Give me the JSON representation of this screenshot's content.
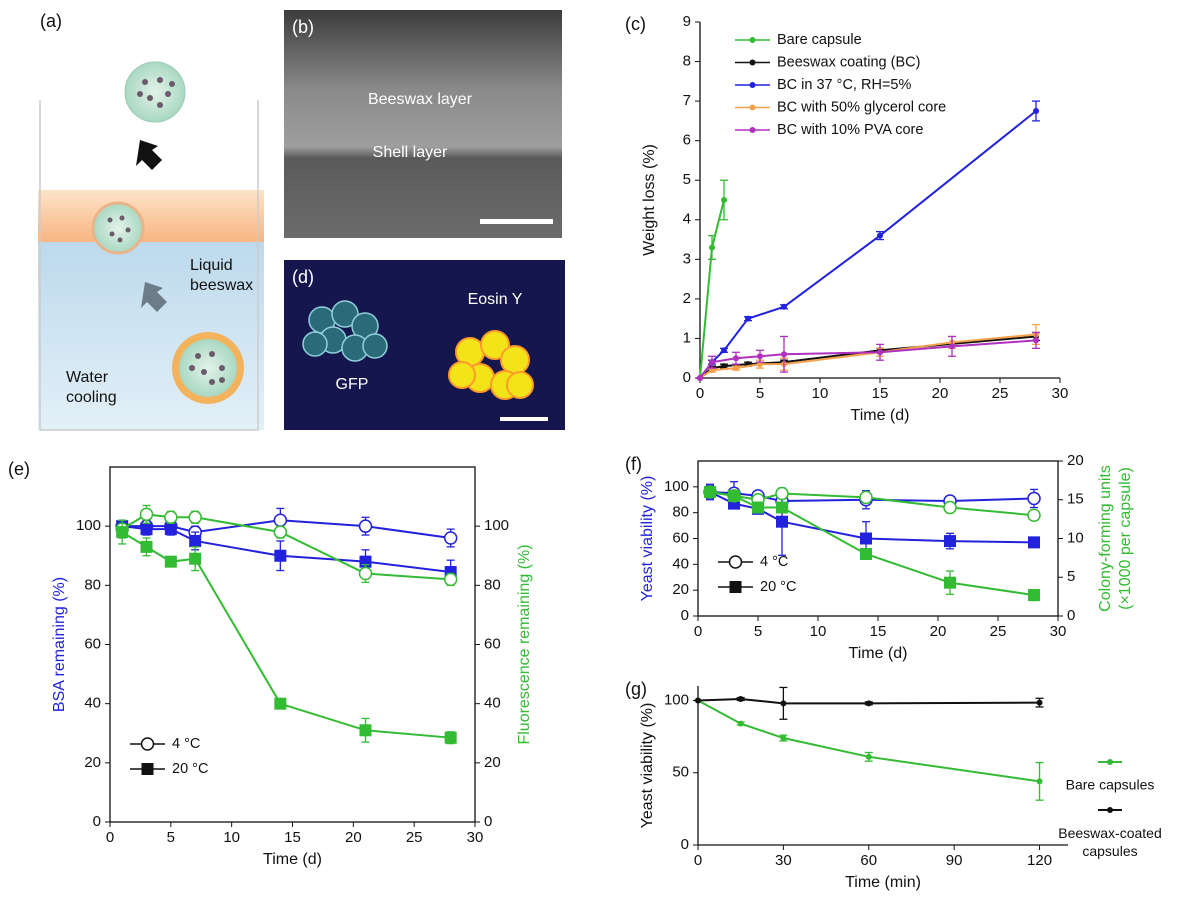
{
  "illustrations": {
    "a": {
      "label": "(a)",
      "liquid_beeswax": [
        "Liquid",
        "beeswax"
      ],
      "water_cooling": [
        "Water",
        "cooling"
      ]
    },
    "b": {
      "label": "(b)",
      "beeswax_layer": "Beeswax layer",
      "shell_layer": "Shell layer"
    },
    "d": {
      "label": "(d)",
      "gfp": "GFP",
      "eosin": "Eosin Y"
    }
  },
  "chart_data": [
    {
      "type": "line",
      "label": "(c)",
      "xlabel": "Time (d)",
      "ylabel": "Weight loss (%)",
      "xlim": [
        0,
        30
      ],
      "xticks": [
        0,
        5,
        10,
        15,
        20,
        25,
        30
      ],
      "ylim": [
        0,
        9
      ],
      "yticks": [
        0,
        1,
        2,
        3,
        4,
        5,
        6,
        7,
        8,
        9
      ],
      "frame": "axes",
      "legend_pos": "inside-top-left",
      "marker_size": "small",
      "series": [
        {
          "name": "Bare capsule",
          "color": "#33bb33",
          "marker": "circle",
          "x": [
            0,
            1,
            2
          ],
          "values": [
            0,
            3.3,
            4.5
          ],
          "errors": [
            0,
            0.3,
            0.5
          ]
        },
        {
          "name": "Beeswax coating (BC)",
          "color": "#111111",
          "marker": "circle",
          "x": [
            0,
            1,
            2,
            4,
            7,
            15,
            28
          ],
          "values": [
            0,
            0.25,
            0.3,
            0.35,
            0.4,
            0.7,
            1.05
          ],
          "errors": [
            0,
            0.05,
            0.05,
            0.05,
            0.05,
            0.05,
            0.1
          ]
        },
        {
          "name": "BC in 37 °C, RH=5%",
          "color": "#2222dd",
          "marker": "circle",
          "x": [
            0,
            1,
            2,
            4,
            7,
            15,
            28
          ],
          "values": [
            0,
            0.4,
            0.7,
            1.5,
            1.8,
            3.6,
            6.75
          ],
          "errors": [
            0,
            0.05,
            0.05,
            0.05,
            0.05,
            0.1,
            0.25
          ]
        },
        {
          "name": "BC with 50% glycerol core",
          "color": "#f5a04a",
          "marker": "circle",
          "x": [
            0,
            1,
            3,
            5,
            7,
            15,
            21,
            28
          ],
          "values": [
            0,
            0.2,
            0.25,
            0.35,
            0.35,
            0.65,
            0.9,
            1.1
          ],
          "errors": [
            0,
            0.05,
            0.05,
            0.1,
            0.15,
            0.1,
            0.15,
            0.25
          ]
        },
        {
          "name": "BC with 10% PVA core",
          "color": "#b030c0",
          "marker": "circle",
          "x": [
            0,
            1,
            3,
            5,
            7,
            15,
            21,
            28
          ],
          "values": [
            0,
            0.4,
            0.5,
            0.55,
            0.6,
            0.65,
            0.8,
            0.95
          ],
          "errors": [
            0,
            0.15,
            0.15,
            0.15,
            0.45,
            0.2,
            0.25,
            0.2
          ]
        }
      ]
    },
    {
      "type": "line",
      "label": "(e)",
      "xlabel": "Time (d)",
      "ylabel": "BSA remaining (%)",
      "ylabel_color": "#2222dd",
      "y2label": [
        "Fluorescence remaining (%)"
      ],
      "y2label_color": "#33bb33",
      "xlim": [
        0,
        30
      ],
      "xticks": [
        0,
        5,
        10,
        15,
        20,
        25,
        30
      ],
      "ylim": [
        0,
        120
      ],
      "yticks": [
        0,
        20,
        40,
        60,
        80,
        100
      ],
      "y2lim": [
        0,
        120
      ],
      "y2ticks": [
        0,
        20,
        40,
        60,
        80,
        100
      ],
      "frame": "box",
      "legend_pos": "inside-bottom-left",
      "marker_size": "large",
      "legend": [
        {
          "name": "4 °C",
          "marker": "circle-open"
        },
        {
          "name": "20 °C",
          "marker": "square"
        }
      ],
      "series": [
        {
          "color": "#2222dd",
          "marker": "circle-open",
          "x": [
            1,
            3,
            5,
            7,
            14,
            21,
            28
          ],
          "values": [
            100,
            100,
            100,
            98,
            102,
            100,
            96
          ],
          "errors": [
            2,
            2,
            2,
            2,
            4,
            3,
            3
          ]
        },
        {
          "color": "#2222dd",
          "marker": "square",
          "x": [
            1,
            3,
            5,
            7,
            14,
            21,
            28
          ],
          "values": [
            100,
            99,
            99,
            95,
            90,
            88,
            84.5
          ],
          "errors": [
            2,
            2,
            2,
            3,
            5,
            4,
            4
          ]
        },
        {
          "color": "#33bb33",
          "marker": "circle-open",
          "axis": "y2",
          "x": [
            1,
            3,
            5,
            7,
            14,
            21,
            28
          ],
          "values": [
            99,
            104,
            103,
            103,
            98,
            84,
            82
          ],
          "errors": [
            3,
            3,
            2,
            2,
            2,
            3,
            2
          ]
        },
        {
          "color": "#33bb33",
          "marker": "square",
          "axis": "y2",
          "x": [
            1,
            3,
            5,
            7,
            14,
            21,
            28
          ],
          "values": [
            98,
            93,
            88,
            89,
            40,
            31,
            28.5
          ],
          "errors": [
            4,
            3,
            1,
            4,
            1,
            4,
            2
          ]
        }
      ]
    },
    {
      "type": "line",
      "label": "(f)",
      "xlabel": "Time (d)",
      "ylabel": "Yeast viability (%)",
      "ylabel_color": "#2222dd",
      "y2label": [
        "Colony-forming units",
        "(×1000 per capsule)"
      ],
      "y2label_color": "#33bb33",
      "xlim": [
        0,
        30
      ],
      "xticks": [
        0,
        5,
        10,
        15,
        20,
        25,
        30
      ],
      "ylim": [
        0,
        120
      ],
      "yticks": [
        0,
        20,
        40,
        60,
        80,
        100
      ],
      "y2lim": [
        0,
        20
      ],
      "y2ticks": [
        0,
        5,
        10,
        15,
        20
      ],
      "frame": "box",
      "legend_pos": "inside-bottom-left",
      "marker_size": "large",
      "legend": [
        {
          "name": "4 °C",
          "marker": "circle-open"
        },
        {
          "name": "20 °C",
          "marker": "square"
        }
      ],
      "series": [
        {
          "color": "#2222dd",
          "marker": "circle-open",
          "x": [
            1,
            3,
            5,
            7,
            14,
            21,
            28
          ],
          "values": [
            96,
            95,
            93,
            89,
            90,
            89,
            91
          ],
          "errors": [
            5,
            9,
            3,
            4,
            7,
            3,
            7
          ]
        },
        {
          "color": "#2222dd",
          "marker": "square",
          "x": [
            1,
            3,
            5,
            7,
            14,
            21,
            28
          ],
          "values": [
            96,
            87,
            83,
            73,
            60,
            58,
            57
          ],
          "errors": [
            6,
            4,
            3,
            26,
            13,
            6,
            2
          ]
        },
        {
          "color": "#33bb33",
          "marker": "circle-open",
          "axis": "y2",
          "x": [
            1,
            3,
            5,
            7,
            14,
            21,
            28
          ],
          "values": [
            16,
            15.5,
            15,
            15.8,
            15.3,
            14,
            13
          ],
          "errors": [
            0.5,
            0.5,
            0.5,
            0.5,
            0.5,
            0.7,
            0.5
          ]
        },
        {
          "color": "#33bb33",
          "marker": "square",
          "axis": "y2",
          "x": [
            1,
            3,
            5,
            7,
            14,
            21,
            28
          ],
          "values": [
            16,
            15.5,
            14,
            14,
            8,
            4.3,
            2.7
          ],
          "errors": [
            0.5,
            0.5,
            0.5,
            0.5,
            0.5,
            1.5,
            0.7
          ]
        }
      ]
    },
    {
      "type": "line",
      "label": "(g)",
      "xlabel": "Time (min)",
      "ylabel": "Yeast viability (%)",
      "xlim": [
        0,
        130
      ],
      "xticks": [
        0,
        30,
        60,
        90,
        120
      ],
      "ylim": [
        0,
        110
      ],
      "yticks": [
        0,
        50,
        100
      ],
      "frame": "axes",
      "legend_pos": "outside-right",
      "marker_size": "small",
      "series": [
        {
          "name": "Bare capsules",
          "color": "#33bb33",
          "marker": "circle",
          "x": [
            0,
            15,
            30,
            60,
            120
          ],
          "values": [
            100,
            84,
            74,
            61,
            44
          ],
          "errors": [
            0,
            1,
            2,
            3,
            13
          ]
        },
        {
          "name": "Beeswax-coated capsules",
          "color": "#111111",
          "marker": "circle",
          "x": [
            0,
            15,
            30,
            60,
            120
          ],
          "values": [
            100,
            101,
            98,
            98,
            98.5
          ],
          "errors": [
            0,
            1,
            11,
            1,
            3
          ]
        }
      ]
    }
  ]
}
